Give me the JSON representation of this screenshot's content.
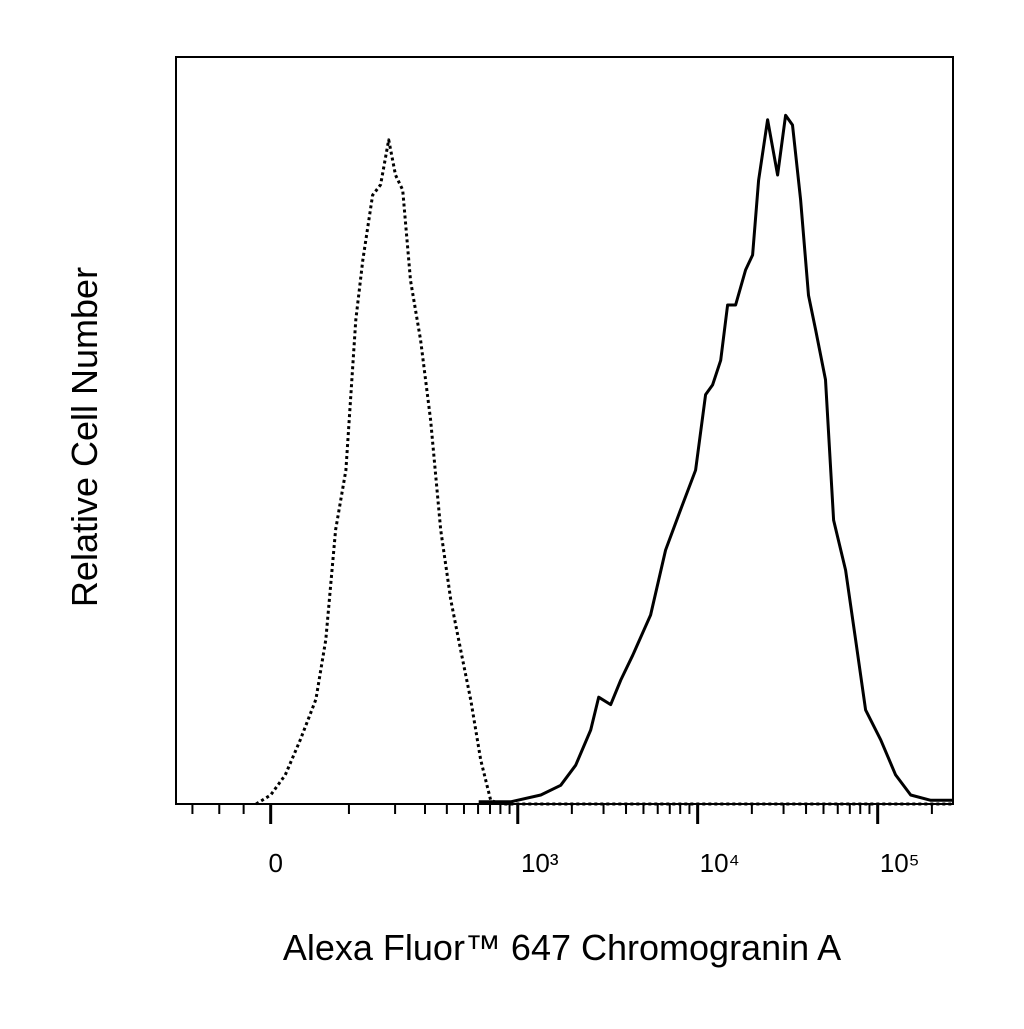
{
  "chart_data": {
    "type": "line",
    "x_label": "Alexa Fluor™ 647 Chromogranin A",
    "y_label": "Relative Cell Number",
    "xscale": "asinh",
    "asinh_cofactor": 85,
    "xlim": [
      -130,
      262000
    ],
    "ylim": [
      0,
      100
    ],
    "xticks": [
      0,
      {
        "value": 1000,
        "label": "10³"
      },
      {
        "value": 10000,
        "label": "10⁴"
      },
      {
        "value": 100000,
        "label": "10⁵"
      }
    ],
    "xminorticks": [
      -100,
      -60,
      -30,
      100,
      200,
      300,
      400,
      500,
      600,
      700,
      800,
      900,
      2000,
      3000,
      4000,
      5000,
      6000,
      7000,
      8000,
      9000,
      20000,
      30000,
      40000,
      50000,
      60000,
      70000,
      80000,
      90000,
      200000
    ],
    "grid": false,
    "series": [
      {
        "color": "#000000",
        "line_style": "dotted",
        "x": [
          -16,
          0,
          16,
          33,
          52,
          65,
          79,
          95,
          112,
          125,
          145,
          163,
          183,
          201,
          222,
          247,
          283,
          323,
          369,
          421,
          479,
          546,
          621,
          706,
          802,
          2890,
          262000
        ],
        "values": [
          0,
          1.2,
          3.9,
          8.6,
          14,
          22,
          36.7,
          44.7,
          64.8,
          72.8,
          81.5,
          82.9,
          88.9,
          84.2,
          82.2,
          70.1,
          62.1,
          51.4,
          36.7,
          27.3,
          20.6,
          13.9,
          5.9,
          0.5,
          0,
          0,
          0
        ]
      },
      {
        "color": "#000000",
        "line_style": "solid",
        "x": [
          605,
          913,
          1343,
          1734,
          2100,
          2544,
          2820,
          3290,
          3740,
          4354,
          5477,
          6635,
          8040,
          9740,
          11075,
          12110,
          13420,
          14670,
          16250,
          18470,
          20200,
          21800,
          24450,
          27800,
          30800,
          33650,
          37300,
          41300,
          45200,
          51300,
          56900,
          66300,
          75400,
          85700,
          103900,
          125800,
          152500,
          197000,
          262000
        ],
        "values": [
          0.3,
          0.3,
          1.2,
          2.5,
          5.2,
          9.9,
          14.3,
          13.3,
          16.6,
          19.9,
          25.3,
          34,
          39.4,
          44.7,
          54.8,
          56.1,
          59.4,
          66.8,
          66.8,
          71.5,
          73.5,
          83.5,
          91.6,
          84.2,
          92.2,
          90.9,
          80.9,
          68.1,
          63.5,
          56.8,
          38,
          31.3,
          22,
          12.6,
          8.6,
          3.9,
          1.2,
          0.5,
          0.5
        ]
      }
    ]
  }
}
